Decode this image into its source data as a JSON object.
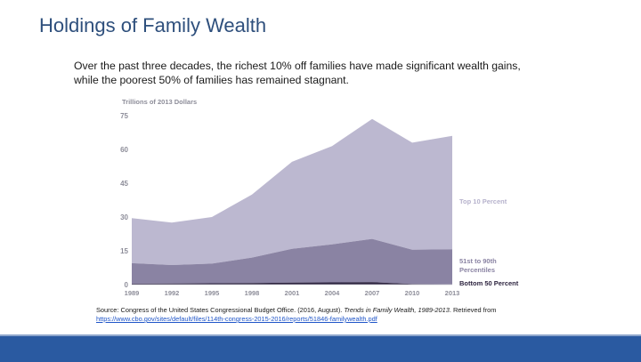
{
  "slide": {
    "title": "Holdings of Family Wealth",
    "subtitle_line1": "Over the past three decades, the richest 10% off families have made significant wealth gains,",
    "subtitle_line2": "while the poorest 50% of families has remained stagnant."
  },
  "source": {
    "prefix": "Source: Congress of the United States Congressional Budget Office. (2016, August). ",
    "title_italic": "Trends in Family Wealth, 1989-2013",
    "suffix": ". Retrieved from",
    "url": "https://www.cbo.gov/sites/default/files/114th-congress-2015-2016/reports/51846-familywealth.pdf"
  },
  "chart_data": {
    "type": "area",
    "stacked": true,
    "ylabel": "Trillions of 2013 Dollars",
    "ylim": [
      0,
      75
    ],
    "yticks": [
      0,
      15,
      30,
      45,
      60,
      75
    ],
    "categories": [
      "1989",
      "1992",
      "1995",
      "1998",
      "2001",
      "2004",
      "2007",
      "2010",
      "2013"
    ],
    "grid": false,
    "legend": "right, inline labels",
    "series": [
      {
        "name": "Bottom 50 Percent",
        "color": "#2e2540",
        "values": [
          0.4,
          0.5,
          0.6,
          0.7,
          0.9,
          1.0,
          1.1,
          0.3,
          0.1
        ]
      },
      {
        "name": "51st to 90th Percentiles",
        "color": "#8a83a3",
        "values": [
          9.1,
          8.2,
          8.7,
          11.3,
          15.0,
          16.9,
          19.2,
          15.2,
          15.6
        ]
      },
      {
        "name": "Top 10 Percent",
        "color": "#bcb8d0",
        "values": [
          20.0,
          18.8,
          20.7,
          28.0,
          38.6,
          43.6,
          53.2,
          47.5,
          50.3
        ]
      }
    ],
    "legend_labels": {
      "top": "Top 10 Percent",
      "mid_line1": "51st to 90th",
      "mid_line2": "Percentiles",
      "bottom": "Bottom 50 Percent"
    }
  }
}
